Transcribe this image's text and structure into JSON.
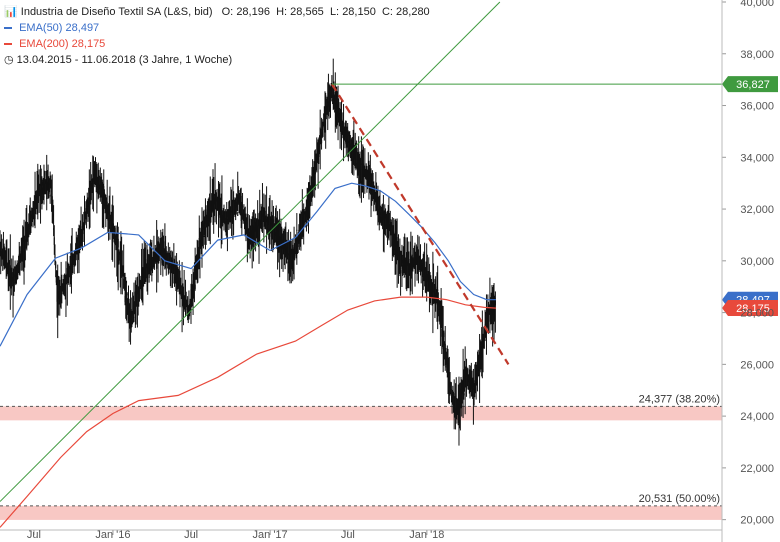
{
  "legend": {
    "title": "Industria de Diseño Textil SA (L&S, bid)",
    "open_label": "O:",
    "open": "28,196",
    "high_label": "H:",
    "high": "28,565",
    "low_label": "L:",
    "low": "28,150",
    "close_label": "C:",
    "close": "28,280",
    "ema50_label": "EMA(50)",
    "ema50_value": "28,497",
    "ema200_label": "EMA(200)",
    "ema200_value": "28,175",
    "period": "13.04.2015 - 11.06.2018",
    "period_note": "(3 Jahre, 1 Woche)"
  },
  "colors": {
    "ema50": "#3a6fc9",
    "ema200": "#e8493b",
    "trend_up": "#3f9a3f",
    "trend_down": "#c0392b",
    "fib_band": "#f8c8c4",
    "candles": "#111111",
    "resistance": "#3f9a3f"
  },
  "chart_data": {
    "type": "line",
    "ylim": [
      19600,
      40000
    ],
    "y_ticks": [
      "20,000",
      "22,000",
      "24,000",
      "26,000",
      "28,000",
      "30,000",
      "32,000",
      "34,000",
      "36,000",
      "38,000",
      "40,000"
    ],
    "y_tick_values": [
      20000,
      22000,
      24000,
      26000,
      28000,
      30000,
      32000,
      34000,
      36000,
      38000,
      40000
    ],
    "x_ticks": [
      "Jul",
      "Jan '16",
      "Jul",
      "Jan '17",
      "Jul",
      "Jan '18"
    ],
    "x_tick_dates": [
      "2015-07-01",
      "2016-01-01",
      "2016-07-01",
      "2017-01-01",
      "2017-07-01",
      "2018-01-01"
    ],
    "xlim": [
      "2015-04-13",
      "2018-06-11"
    ],
    "series": [
      {
        "name": "Industria de Diseño Textil SA (L&S, bid)",
        "kind": "price",
        "x": [
          "2015-04-13",
          "2015-05-15",
          "2015-06-15",
          "2015-07-15",
          "2015-08-10",
          "2015-08-25",
          "2015-09-20",
          "2015-10-20",
          "2015-11-20",
          "2015-12-15",
          "2016-01-20",
          "2016-02-11",
          "2016-03-10",
          "2016-04-20",
          "2016-05-20",
          "2016-06-27",
          "2016-07-25",
          "2016-08-25",
          "2016-09-20",
          "2016-10-20",
          "2016-11-15",
          "2016-12-15",
          "2017-01-20",
          "2017-02-20",
          "2017-03-20",
          "2017-04-15",
          "2017-05-10",
          "2017-05-25",
          "2017-06-15",
          "2017-07-10",
          "2017-07-31",
          "2017-08-20",
          "2017-09-15",
          "2017-10-10",
          "2017-10-30",
          "2017-11-20",
          "2017-12-10",
          "2018-01-10",
          "2018-01-31",
          "2018-02-15",
          "2018-03-01",
          "2018-03-15",
          "2018-04-01",
          "2018-04-20",
          "2018-05-10",
          "2018-05-25",
          "2018-06-11"
        ],
        "values": [
          30500,
          29200,
          31000,
          32800,
          33000,
          28500,
          29500,
          31000,
          33400,
          32200,
          30000,
          27600,
          29400,
          30500,
          29700,
          28000,
          31000,
          32400,
          31500,
          32400,
          30800,
          31700,
          31000,
          30000,
          31500,
          33400,
          35800,
          36600,
          35300,
          34400,
          33500,
          33200,
          31800,
          31200,
          30000,
          29700,
          30100,
          29000,
          28200,
          26200,
          24700,
          24200,
          25600,
          25000,
          26600,
          28100,
          28280
        ]
      },
      {
        "name": "EMA(50)",
        "kind": "ema",
        "x": [
          "2015-04-13",
          "2015-06-15",
          "2015-08-20",
          "2015-10-20",
          "2015-12-20",
          "2016-03-01",
          "2016-05-01",
          "2016-07-01",
          "2016-09-01",
          "2016-11-01",
          "2017-01-01",
          "2017-03-01",
          "2017-04-20",
          "2017-06-01",
          "2017-07-10",
          "2017-08-10",
          "2017-09-15",
          "2017-10-20",
          "2017-11-20",
          "2017-12-20",
          "2018-01-20",
          "2018-02-20",
          "2018-03-20",
          "2018-04-20",
          "2018-05-20",
          "2018-06-11"
        ],
        "values": [
          26700,
          28700,
          30100,
          30500,
          31100,
          31000,
          30000,
          29700,
          30800,
          31000,
          30400,
          30900,
          31900,
          32800,
          33000,
          32900,
          32700,
          32300,
          31800,
          31300,
          30700,
          30000,
          29200,
          28700,
          28500,
          28497
        ]
      },
      {
        "name": "EMA(200)",
        "kind": "ema",
        "x": [
          "2015-04-13",
          "2015-06-15",
          "2015-09-01",
          "2015-11-01",
          "2016-01-01",
          "2016-03-01",
          "2016-06-01",
          "2016-09-01",
          "2016-12-01",
          "2017-03-01",
          "2017-05-01",
          "2017-07-01",
          "2017-09-01",
          "2017-11-01",
          "2018-01-01",
          "2018-02-15",
          "2018-04-01",
          "2018-05-15",
          "2018-06-11"
        ],
        "values": [
          19700,
          20900,
          22400,
          23400,
          24100,
          24600,
          24800,
          25500,
          26400,
          26900,
          27500,
          28100,
          28450,
          28600,
          28600,
          28500,
          28300,
          28200,
          28175
        ]
      }
    ],
    "lines": [
      {
        "label": "",
        "kind": "trend_up",
        "x": [
          "2015-04-13",
          "2018-06-20"
        ],
        "y": [
          20700,
          40000
        ]
      },
      {
        "label": "",
        "kind": "trend_down",
        "x": [
          "2017-05-25",
          "2018-07-10"
        ],
        "y": [
          36827,
          26000
        ]
      },
      {
        "label": "",
        "kind": "resistance",
        "x": [
          "2017-05-25",
          "2018-06-20"
        ],
        "y": [
          36827,
          36827
        ]
      }
    ],
    "fib_levels": [
      {
        "label": "24,377 (38.20%)",
        "value": 24377
      },
      {
        "label": "20,531 (50.00%)",
        "value": 20531
      }
    ],
    "badges": [
      {
        "text": "36,827",
        "value": 36827,
        "color": "#3f9a3f"
      },
      {
        "text": "28,497",
        "value": 28497,
        "color": "#3a6fc9"
      },
      {
        "text": "28,175",
        "value": 28175,
        "color": "#e8493b"
      }
    ]
  }
}
